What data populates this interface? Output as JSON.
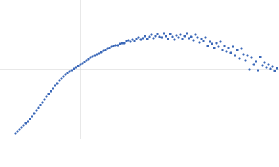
{
  "chart_data": {
    "type": "scatter",
    "x": [
      22,
      25,
      28,
      31,
      34,
      37,
      40,
      43,
      46,
      49,
      52,
      55,
      58,
      61,
      64,
      67,
      70,
      73,
      76,
      79,
      82,
      85,
      88,
      91,
      94,
      97,
      100,
      103,
      106,
      109,
      112,
      115,
      118,
      121,
      124,
      127,
      130,
      133,
      136,
      139,
      142,
      145,
      148,
      151,
      154,
      157,
      160,
      163,
      166,
      169,
      172,
      175,
      178,
      181,
      184,
      187,
      190,
      193,
      196,
      199,
      202,
      205,
      208,
      211,
      214,
      217,
      220,
      223,
      226,
      229,
      232,
      235,
      238,
      241,
      244,
      247,
      250,
      253,
      256,
      259,
      262,
      265,
      268,
      271,
      274,
      277,
      280,
      283,
      286,
      289,
      292,
      295,
      298,
      301,
      304,
      307,
      310,
      313,
      316,
      319,
      322,
      325,
      328,
      331,
      334,
      337,
      340,
      343,
      346,
      349,
      352,
      355,
      358,
      361,
      364,
      367,
      370,
      373,
      376,
      379,
      382,
      385,
      388,
      391,
      394,
      397
    ],
    "values": [
      8,
      11,
      14,
      17,
      20,
      23,
      25,
      29,
      33,
      37,
      41,
      45,
      49,
      53,
      57,
      61,
      65,
      69,
      73,
      77,
      80,
      84,
      87,
      90,
      93,
      95,
      97,
      99,
      101,
      103,
      105,
      107,
      109,
      111,
      113,
      115,
      117,
      119,
      120,
      122,
      123,
      125,
      127,
      128,
      130,
      131,
      133,
      134,
      135,
      135,
      137,
      138,
      138,
      141,
      142,
      140,
      143,
      141,
      144,
      146,
      143,
      145,
      148,
      144,
      147,
      150,
      145,
      148,
      151,
      147,
      146,
      152,
      148,
      144,
      151,
      147,
      143,
      149,
      146,
      150,
      144,
      148,
      152,
      145,
      147,
      142,
      150,
      146,
      139,
      144,
      141,
      146,
      134,
      140,
      137,
      131,
      138,
      133,
      140,
      128,
      134,
      126,
      131,
      124,
      133,
      120,
      128,
      116,
      130,
      122,
      113,
      120,
      100,
      117,
      107,
      112,
      99,
      118,
      106,
      110,
      103,
      107,
      101,
      104,
      98,
      102
    ],
    "color": "#3b68b8",
    "xlim": [
      0,
      400
    ],
    "ylim": [
      0,
      200
    ],
    "xticks": [
      115
    ],
    "yticks": [
      100
    ],
    "grid": true
  }
}
